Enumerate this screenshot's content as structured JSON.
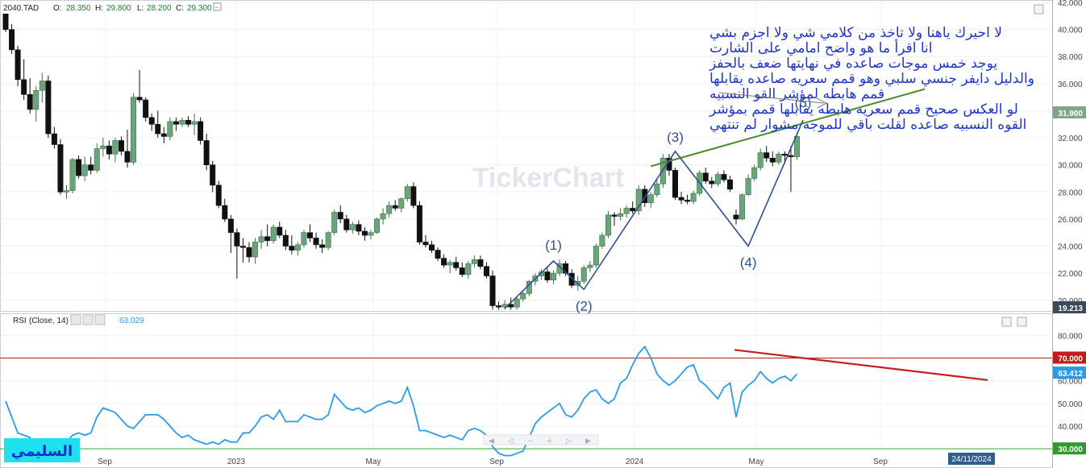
{
  "header": {
    "symbol": "2040.TAD",
    "open_label": "O:",
    "open": "28.350",
    "high_label": "H:",
    "high": "29.800",
    "low_label": "L:",
    "low": "28.200",
    "close_label": "C:",
    "close": "29.300"
  },
  "rsi_header": {
    "label": "RSI",
    "params": "(Close, 14)",
    "value": "63.029"
  },
  "watermark": "TickerChart",
  "author_tag": "السليمي",
  "annotation_lines": [
    "لا احيرك ياهنا ولا تاخذ من كلامي شي ولا اجزم بشي",
    "انا اقرأ ما هو واضح امامي على الشارت",
    "يوجد خمس موجات صاعده في نهايتها ضعف بالحفز",
    "والدليل دايفر جنسي سلبي وهو قمم سعريه صاعده يقابلها",
    "قمم هابطه لمؤشر القو النسبيه",
    "لو العكس صحيح قمم سعريه هابطه يقابلها قمم بمؤشر",
    "القوه النسبيه صاعده لقلت باقي للموجه مشوار لم تنتهي"
  ],
  "wave_labels": [
    "(1)",
    "(2)",
    "(3)",
    "(4)",
    "(5)"
  ],
  "last_price_label": "31.900",
  "low_price_label": "19.213",
  "rsi_level_labels": {
    "upper": "70.000",
    "current": "63.412",
    "lower": "30.000"
  },
  "x_axis_labels": [
    "Sep",
    "2023",
    "May",
    "Sep",
    "2024",
    "May",
    "Sep"
  ],
  "date_badge": "24/11/2024",
  "colors": {
    "up": "#6aa57a",
    "down": "#111111",
    "rsi": "#2c9be4",
    "trend_green": "#4e8a2f",
    "trend_red": "#c81e1e",
    "wave": "#2f4f8f",
    "text_blue": "#1f35c8"
  },
  "chart_data": [
    {
      "type": "candlestick",
      "symbol": "2040.TAD",
      "ylim": [
        19.213,
        42
      ],
      "y_ticks": [
        20,
        22,
        24,
        26,
        28,
        30,
        32,
        34,
        36,
        38,
        40,
        42
      ],
      "x_ticks": [
        "Sep",
        "2023",
        "May",
        "Sep",
        "2024",
        "May",
        "Sep"
      ],
      "candles": [
        [
          41.2,
          41.8,
          39.8,
          40.0
        ],
        [
          40.0,
          40.4,
          38.2,
          38.5
        ],
        [
          38.5,
          38.8,
          35.8,
          36.3
        ],
        [
          36.3,
          37.8,
          34.8,
          35.2
        ],
        [
          35.2,
          36.4,
          33.8,
          34.1
        ],
        [
          34.1,
          35.8,
          33.2,
          35.5
        ],
        [
          35.5,
          36.8,
          34.6,
          36.2
        ],
        [
          36.2,
          36.6,
          32.0,
          32.3
        ],
        [
          32.3,
          32.8,
          31.2,
          31.5
        ],
        [
          31.5,
          31.9,
          27.8,
          28.0
        ],
        [
          28.0,
          28.5,
          27.5,
          28.1
        ],
        [
          28.1,
          30.5,
          27.9,
          30.4
        ],
        [
          30.4,
          30.7,
          29.0,
          29.2
        ],
        [
          29.2,
          30.6,
          28.8,
          30.0
        ],
        [
          30.0,
          30.6,
          29.3,
          29.6
        ],
        [
          29.6,
          31.6,
          29.4,
          31.2
        ],
        [
          31.2,
          32.0,
          30.6,
          31.4
        ],
        [
          31.4,
          31.8,
          30.4,
          30.8
        ],
        [
          30.8,
          32.0,
          30.2,
          31.8
        ],
        [
          31.8,
          32.1,
          30.7,
          31.0
        ],
        [
          31.0,
          32.6,
          29.8,
          30.2
        ],
        [
          30.2,
          35.3,
          30.0,
          35.0
        ],
        [
          35.0,
          37.0,
          34.6,
          34.8
        ],
        [
          34.8,
          35.0,
          33.2,
          33.5
        ],
        [
          33.5,
          33.8,
          32.5,
          33.0
        ],
        [
          33.0,
          34.0,
          32.0,
          32.3
        ],
        [
          32.3,
          32.8,
          31.6,
          32.1
        ],
        [
          32.1,
          33.5,
          31.8,
          33.2
        ],
        [
          33.2,
          33.5,
          32.5,
          33.0
        ],
        [
          33.0,
          33.5,
          32.8,
          33.3
        ],
        [
          33.3,
          33.6,
          32.8,
          33.0
        ],
        [
          33.0,
          33.8,
          32.2,
          33.2
        ],
        [
          33.2,
          33.5,
          31.5,
          31.8
        ],
        [
          31.8,
          32.3,
          29.6,
          30.0
        ],
        [
          30.0,
          30.3,
          28.0,
          28.5
        ],
        [
          28.5,
          28.8,
          26.8,
          27.0
        ],
        [
          27.0,
          27.5,
          25.8,
          26.0
        ],
        [
          26.0,
          26.3,
          23.5,
          25.0
        ],
        [
          25.0,
          25.3,
          21.6,
          24.0
        ],
        [
          24.0,
          24.6,
          22.8,
          23.9
        ],
        [
          23.9,
          24.3,
          22.8,
          23.2
        ],
        [
          23.2,
          24.6,
          22.7,
          24.3
        ],
        [
          24.3,
          25.2,
          23.8,
          24.7
        ],
        [
          24.7,
          25.6,
          24.0,
          24.4
        ],
        [
          24.4,
          25.6,
          24.2,
          25.4
        ],
        [
          25.4,
          25.8,
          24.6,
          24.8
        ],
        [
          24.8,
          25.2,
          23.7,
          24.0
        ],
        [
          24.0,
          24.8,
          23.4,
          23.7
        ],
        [
          23.7,
          24.3,
          23.3,
          24.1
        ],
        [
          24.1,
          25.2,
          23.9,
          25.0
        ],
        [
          25.0,
          25.6,
          24.3,
          24.6
        ],
        [
          24.6,
          25.0,
          23.8,
          24.1
        ],
        [
          24.1,
          24.5,
          23.5,
          23.9
        ],
        [
          23.9,
          25.1,
          23.7,
          25.0
        ],
        [
          25.0,
          26.7,
          24.8,
          26.5
        ],
        [
          26.5,
          27.0,
          25.7,
          26.0
        ],
        [
          26.0,
          26.3,
          25.0,
          25.2
        ],
        [
          25.2,
          25.8,
          24.9,
          25.6
        ],
        [
          25.6,
          25.9,
          24.8,
          25.1
        ],
        [
          25.1,
          25.4,
          24.4,
          24.8
        ],
        [
          24.8,
          25.2,
          24.5,
          25.0
        ],
        [
          25.0,
          26.1,
          24.9,
          26.0
        ],
        [
          26.0,
          26.8,
          25.6,
          26.4
        ],
        [
          26.4,
          27.3,
          26.1,
          27.0
        ],
        [
          27.0,
          27.4,
          26.6,
          26.8
        ],
        [
          26.8,
          27.6,
          26.5,
          27.5
        ],
        [
          27.5,
          28.6,
          27.3,
          28.4
        ],
        [
          28.4,
          28.7,
          26.8,
          27.0
        ],
        [
          27.0,
          27.3,
          24.1,
          24.3
        ],
        [
          24.3,
          24.8,
          23.9,
          24.1
        ],
        [
          24.1,
          24.4,
          23.5,
          23.7
        ],
        [
          23.7,
          23.9,
          22.9,
          23.1
        ],
        [
          23.1,
          23.4,
          22.4,
          22.6
        ],
        [
          22.6,
          23.0,
          22.0,
          22.8
        ],
        [
          22.8,
          23.2,
          22.2,
          22.4
        ],
        [
          22.4,
          22.8,
          21.7,
          21.9
        ],
        [
          21.9,
          22.9,
          21.6,
          22.7
        ],
        [
          22.7,
          23.3,
          22.4,
          23.0
        ],
        [
          23.0,
          23.3,
          22.3,
          22.5
        ],
        [
          22.5,
          22.8,
          21.6,
          21.8
        ],
        [
          21.8,
          22.2,
          19.3,
          19.6
        ],
        [
          19.6,
          19.9,
          19.3,
          19.5
        ],
        [
          19.5,
          20.0,
          19.3,
          19.7
        ],
        [
          19.7,
          20.2,
          19.3,
          19.5
        ],
        [
          19.5,
          20.3,
          19.3,
          20.1
        ],
        [
          20.1,
          20.7,
          19.9,
          20.5
        ],
        [
          20.5,
          21.5,
          20.3,
          21.4
        ],
        [
          21.4,
          22.0,
          21.1,
          21.8
        ],
        [
          21.8,
          22.3,
          21.5,
          22.1
        ],
        [
          22.1,
          22.4,
          21.3,
          21.5
        ],
        [
          21.5,
          22.2,
          21.2,
          22.0
        ],
        [
          22.0,
          23.0,
          21.8,
          22.7
        ],
        [
          22.7,
          22.9,
          21.8,
          22.0
        ],
        [
          22.0,
          22.3,
          20.9,
          21.1
        ],
        [
          21.1,
          21.8,
          20.7,
          21.4
        ],
        [
          21.4,
          22.6,
          21.2,
          22.4
        ],
        [
          22.4,
          22.9,
          22.1,
          22.6
        ],
        [
          22.6,
          24.2,
          22.4,
          24.0
        ],
        [
          24.0,
          25.0,
          23.8,
          24.8
        ],
        [
          24.8,
          26.6,
          24.6,
          26.3
        ],
        [
          26.3,
          26.5,
          25.5,
          26.2
        ],
        [
          26.2,
          26.8,
          25.9,
          26.4
        ],
        [
          26.4,
          27.0,
          26.1,
          26.8
        ],
        [
          26.8,
          27.3,
          26.4,
          26.6
        ],
        [
          26.6,
          28.5,
          26.3,
          28.2
        ],
        [
          28.2,
          28.5,
          26.9,
          27.2
        ],
        [
          27.2,
          28.0,
          26.8,
          27.8
        ],
        [
          27.8,
          28.9,
          27.6,
          28.6
        ],
        [
          28.6,
          30.8,
          28.3,
          30.5
        ],
        [
          30.5,
          30.8,
          29.2,
          29.6
        ],
        [
          29.6,
          29.8,
          27.4,
          27.6
        ],
        [
          27.6,
          28.0,
          27.1,
          27.4
        ],
        [
          27.4,
          27.8,
          27.1,
          27.3
        ],
        [
          27.3,
          28.1,
          27.1,
          27.9
        ],
        [
          27.9,
          29.6,
          27.7,
          29.4
        ],
        [
          29.4,
          29.8,
          28.6,
          28.8
        ],
        [
          28.8,
          29.1,
          28.3,
          28.6
        ],
        [
          28.6,
          29.5,
          28.4,
          29.3
        ],
        [
          29.3,
          29.6,
          28.7,
          28.9
        ],
        [
          28.9,
          29.2,
          28.0,
          28.2
        ],
        [
          26.3,
          26.7,
          25.6,
          26.0
        ],
        [
          26.0,
          27.9,
          25.9,
          27.8
        ],
        [
          27.8,
          29.3,
          27.7,
          29.0
        ],
        [
          29.0,
          30.0,
          28.8,
          29.8
        ],
        [
          29.8,
          31.2,
          29.6,
          30.9
        ],
        [
          30.9,
          31.4,
          30.2,
          30.5
        ],
        [
          30.5,
          31.0,
          29.9,
          30.2
        ],
        [
          30.2,
          31.0,
          30.0,
          30.8
        ],
        [
          30.8,
          31.0,
          30.1,
          30.7
        ],
        [
          30.7,
          31.4,
          28.0,
          30.6
        ],
        [
          30.6,
          32.4,
          30.4,
          32.1
        ]
      ],
      "waves": [
        {
          "label": "(1)",
          "index": 90,
          "price": 22.9
        },
        {
          "label": "(2)",
          "index": 95,
          "price": 20.8
        },
        {
          "label": "(3)",
          "index": 110,
          "price": 31.0
        },
        {
          "label": "(4)",
          "index": 122,
          "price": 24.0
        },
        {
          "label": "(5)",
          "index": 131,
          "price": 33.3
        }
      ],
      "trendline": {
        "from": [
          106,
          29.9
        ],
        "to": [
          151,
          35.6
        ]
      }
    },
    {
      "type": "line",
      "name": "RSI (Close, 14)",
      "ylim": [
        29,
        84
      ],
      "y_ticks": [
        30,
        40,
        50,
        60,
        70,
        80
      ],
      "levels": [
        70,
        30
      ],
      "values": [
        51,
        44,
        37,
        36,
        35,
        28,
        27,
        26,
        29,
        34,
        33,
        36,
        37,
        36,
        37,
        44,
        48,
        47,
        46,
        43,
        40,
        39,
        42,
        45,
        45,
        45,
        43,
        40,
        37,
        35,
        36,
        34,
        33,
        32,
        33,
        32,
        34,
        33,
        33,
        37,
        37,
        40,
        44,
        45,
        43,
        47,
        42,
        42,
        42,
        45,
        44,
        43,
        43,
        45,
        54,
        51,
        48,
        47,
        48,
        46,
        47,
        49,
        50,
        51,
        50,
        51,
        57,
        49,
        38,
        38,
        37,
        36,
        35,
        36,
        35,
        34,
        38,
        39,
        38,
        36,
        31,
        28,
        27,
        27,
        28,
        29,
        35,
        41,
        44,
        46,
        48,
        50,
        45,
        44,
        47,
        52,
        55,
        56,
        52,
        50,
        52,
        59,
        61,
        67,
        72,
        75,
        70,
        63,
        60,
        58,
        60,
        63,
        66,
        67,
        60,
        58,
        55,
        52,
        57,
        59,
        44,
        55,
        58,
        60,
        64,
        61,
        59,
        61,
        62,
        60,
        63
      ]
    }
  ]
}
